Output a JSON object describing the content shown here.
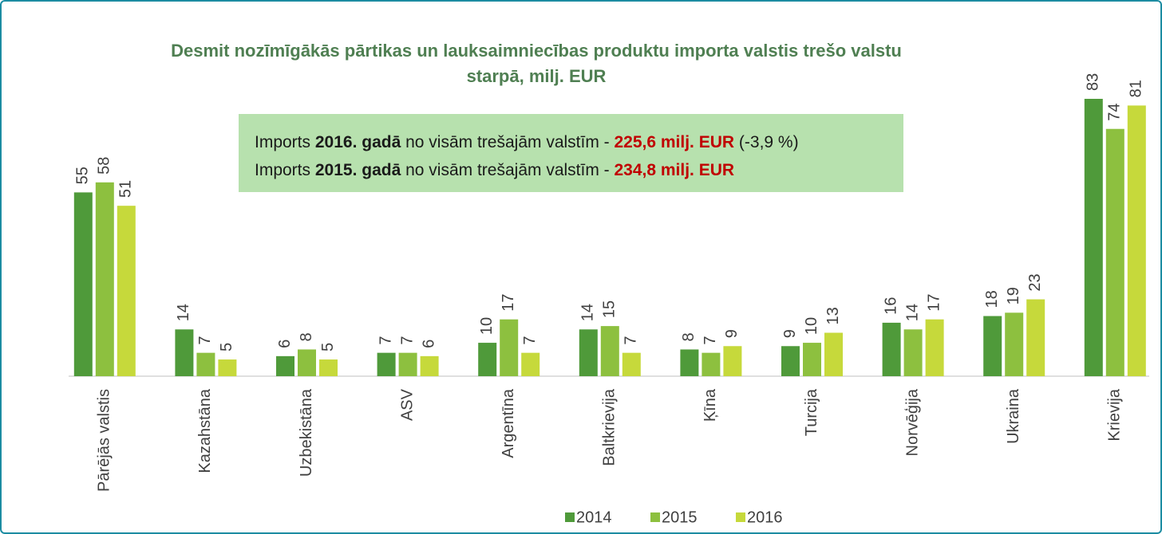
{
  "chart_data": {
    "type": "bar",
    "title": "Desmit nozīmīgākās pārtikas un lauksaimniecības produktu importa valstis trešo valstu starpā, milj. EUR",
    "annotation": [
      [
        {
          "text": "Imports "
        },
        {
          "text": "2016. gadā",
          "bold": true
        },
        {
          "text": " no visām trešajām valstīm - "
        },
        {
          "text": "225,6 milj. EUR",
          "bold": true,
          "color": "#c00000"
        },
        {
          "text": " (-3,9 %)"
        }
      ],
      [
        {
          "text": "Imports "
        },
        {
          "text": "2015. gadā",
          "bold": true
        },
        {
          "text": " no visām trešajām valstīm - "
        },
        {
          "text": "234,8 milj. EUR",
          "bold": true,
          "color": "#c00000"
        }
      ]
    ],
    "categories": [
      "Pārējās valstis",
      "Kazahstāna",
      "Uzbekistāna",
      "ASV",
      "Argentīna",
      "Baltkrievija",
      "Ķīna",
      "Turcija",
      "Norvēģija",
      "Ukraina",
      "Krievija"
    ],
    "series": [
      {
        "name": "2014",
        "color": "#4f9a3a",
        "values": [
          55,
          14,
          6,
          7,
          10,
          14,
          8,
          9,
          16,
          18,
          83
        ]
      },
      {
        "name": "2015",
        "color": "#8dc03f",
        "values": [
          58,
          7,
          8,
          7,
          17,
          15,
          7,
          10,
          14,
          19,
          74
        ]
      },
      {
        "name": "2016",
        "color": "#c6d93b",
        "values": [
          51,
          5,
          5,
          6,
          7,
          7,
          9,
          13,
          17,
          23,
          81
        ]
      }
    ],
    "legend": "bottom"
  }
}
